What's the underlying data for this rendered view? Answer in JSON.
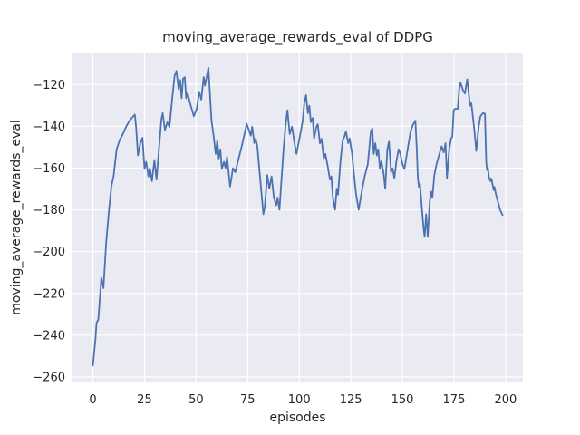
{
  "figure": {
    "title": "moving_average_rewards_eval of DDPG",
    "xlabel": "episodes",
    "ylabel": "moving_average_rewards_eval"
  },
  "chart_data": {
    "type": "line",
    "title": "moving_average_rewards_eval of DDPG",
    "xlabel": "episodes",
    "ylabel": "moving_average_rewards_eval",
    "grid": true,
    "legend": "none",
    "xlim": [
      -9.9,
      208.4
    ],
    "ylim": [
      -262.6,
      -104.7
    ],
    "xticks": [
      0,
      25,
      50,
      75,
      100,
      125,
      150,
      175,
      200
    ],
    "yticks": [
      -120,
      -140,
      -160,
      -180,
      -200,
      -220,
      -240,
      -260
    ],
    "style": {
      "figure_bg": "#ffffff",
      "axes_bg": "#eaeaf2",
      "grid_color": "#ffffff",
      "text_color": "#262626",
      "line_color": "#4c72b0"
    },
    "series": [
      {
        "name": "moving_average_rewards_eval",
        "color": "#4c72b0",
        "x": [
          0,
          1.2,
          1.8,
          2.6,
          3.3,
          4.1,
          5.1,
          6.4,
          7.8,
          9.0,
          10.0,
          11.5,
          13.0,
          14.4,
          15.9,
          17.3,
          18.8,
          20.3,
          21.0,
          21.8,
          23.0,
          24.0,
          25.0,
          25.8,
          26.9,
          27.6,
          28.6,
          29.8,
          30.8,
          32.0,
          33.2,
          33.8,
          34.9,
          36.1,
          37.1,
          38.6,
          39.6,
          40.5,
          41.5,
          42.3,
          43.0,
          43.7,
          44.5,
          45.2,
          45.9,
          47.4,
          48.9,
          50.3,
          51.5,
          52.5,
          53.7,
          54.3,
          56.0,
          57.5,
          58.5,
          59.5,
          60.3,
          61.0,
          61.8,
          62.5,
          63.5,
          64.3,
          65.0,
          66.5,
          67.9,
          69.0,
          70.5,
          72.0,
          73.5,
          74.5,
          75.5,
          76.5,
          77.2,
          78.2,
          78.9,
          79.7,
          81.1,
          82.6,
          83.3,
          84.5,
          85.5,
          86.6,
          87.7,
          88.9,
          89.5,
          90.4,
          91.4,
          92.4,
          93.3,
          94.3,
          95.4,
          96.5,
          97.7,
          98.7,
          100.2,
          101.7,
          102.5,
          103.3,
          104.2,
          104.9,
          105.6,
          106.5,
          107.2,
          108.3,
          109.0,
          110.0,
          110.8,
          111.9,
          112.7,
          113.8,
          114.9,
          115.6,
          116.3,
          117.4,
          118.2,
          118.8,
          120.0,
          121.0,
          121.9,
          122.6,
          123.7,
          124.4,
          125.6,
          126.6,
          127.6,
          128.8,
          130.3,
          131.7,
          133.2,
          134.7,
          135.4,
          136.1,
          136.9,
          137.6,
          138.3,
          139.1,
          139.8,
          140.8,
          141.7,
          142.7,
          143.5,
          144.5,
          145.2,
          146.1,
          147.1,
          148.2,
          149.0,
          150.0,
          151.0,
          153.0,
          154.0,
          155.0,
          156.3,
          157.0,
          157.5,
          158.0,
          158.5,
          159.5,
          160.3,
          160.8,
          161.5,
          162.3,
          163.3,
          164.0,
          164.5,
          165.5,
          166.5,
          167.9,
          169.0,
          170.0,
          170.9,
          171.6,
          172.7,
          173.6,
          174.2,
          174.9,
          175.5,
          176.8,
          177.5,
          178.2,
          179.4,
          180.3,
          181.4,
          182.8,
          183.4,
          183.8,
          185.0,
          185.8,
          187.0,
          187.8,
          189.0,
          190.0,
          190.6,
          191.0,
          191.4,
          191.9,
          192.6,
          193.1,
          193.8,
          194.2,
          194.6,
          195.2,
          195.9,
          196.6,
          197.3,
          198.5
        ],
        "y": [
          -254.5,
          -242,
          -234,
          -232.5,
          -223,
          -212.5,
          -217.5,
          -196,
          -180,
          -168.5,
          -164,
          -151,
          -146.5,
          -144,
          -140.6,
          -138,
          -136,
          -134.4,
          -141,
          -154,
          -148,
          -145.5,
          -160.4,
          -157,
          -164,
          -160,
          -166.2,
          -156.1,
          -165.5,
          -151,
          -136.6,
          -133.7,
          -141.7,
          -138,
          -140.3,
          -125.1,
          -115.7,
          -113.5,
          -122.2,
          -117.9,
          -126.5,
          -117.2,
          -116.5,
          -126.5,
          -124.3,
          -130.1,
          -135.2,
          -131.6,
          -123.5,
          -127.2,
          -116.4,
          -120.5,
          -112.0,
          -137.3,
          -144.5,
          -153.2,
          -146.7,
          -155.4,
          -151.0,
          -160.4,
          -157.0,
          -160.0,
          -154.7,
          -168.8,
          -160.0,
          -162.0,
          -156.0,
          -150.0,
          -143.5,
          -138.8,
          -141.5,
          -144.5,
          -140.2,
          -148.1,
          -146.0,
          -149.6,
          -165.5,
          -182.1,
          -178.4,
          -163.3,
          -169.8,
          -164.0,
          -174.1,
          -177.8,
          -174.1,
          -179.9,
          -165.5,
          -151.0,
          -140.2,
          -132.3,
          -143.7,
          -140.2,
          -148.1,
          -153.2,
          -145.3,
          -137.3,
          -128.5,
          -125.1,
          -133.7,
          -130.1,
          -138.0,
          -136.0,
          -145.8,
          -140.2,
          -139.0,
          -148.1,
          -146.0,
          -155.4,
          -153.2,
          -159.0,
          -165.5,
          -164.0,
          -174.1,
          -179.9,
          -169.8,
          -172.7,
          -156.8,
          -147.1,
          -144.9,
          -142.4,
          -148.1,
          -145.8,
          -153.2,
          -164.0,
          -172.7,
          -179.9,
          -171.3,
          -164.0,
          -158.3,
          -142.4,
          -141.0,
          -153.2,
          -148.1,
          -154.0,
          -151.0,
          -160.4,
          -156.8,
          -161.9,
          -169.8,
          -151.0,
          -147.4,
          -161.9,
          -160.0,
          -164.8,
          -156.8,
          -151.0,
          -153.2,
          -158.0,
          -160.4,
          -148.1,
          -142.4,
          -139.5,
          -137.3,
          -152.0,
          -165.0,
          -169.0,
          -167.5,
          -180.0,
          -189.3,
          -192.9,
          -182.1,
          -192.9,
          -175.6,
          -171.3,
          -174.1,
          -163.3,
          -158.3,
          -153.2,
          -149.6,
          -152.5,
          -148.1,
          -164.8,
          -151.0,
          -145.8,
          -145.0,
          -132.3,
          -131.6,
          -131.6,
          -122.2,
          -119.2,
          -122.8,
          -124.3,
          -117.5,
          -130.1,
          -129.0,
          -132.3,
          -143.0,
          -151.8,
          -140.0,
          -135.2,
          -133.7,
          -134.0,
          -157.0,
          -161.0,
          -159.5,
          -164.0,
          -166.2,
          -165.0,
          -168.4,
          -170.5,
          -169.0,
          -171.9,
          -174.8,
          -177.0,
          -179.9,
          -182.5
        ]
      }
    ]
  }
}
